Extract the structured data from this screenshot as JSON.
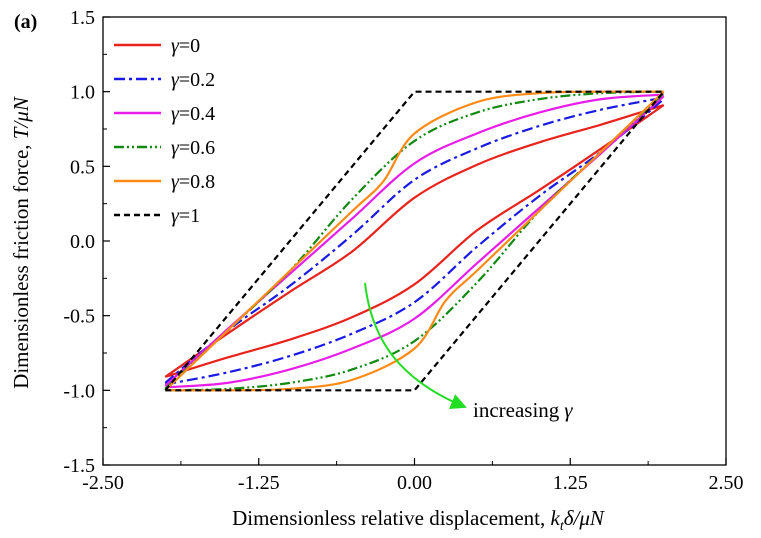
{
  "panel_label": "(a)",
  "annotation": {
    "text": "increasing",
    "symbol": "γ",
    "arrow_color": "#22dd22"
  },
  "chart_data": {
    "type": "line",
    "title": "",
    "xlabel_parts": [
      "Dimensionless relative displacement, ",
      "k",
      "t",
      "δ/μN"
    ],
    "ylabel_parts": [
      "Dimensionless friction force, ",
      "T/μN"
    ],
    "xlim": [
      -2.5,
      2.5
    ],
    "ylim": [
      -1.5,
      1.5
    ],
    "xticks": [
      -2.5,
      -1.25,
      0,
      1.25,
      2.5
    ],
    "xtick_labels": [
      "-2.50",
      "-1.25",
      "0.00",
      "1.25",
      "2.50"
    ],
    "yticks": [
      -1.5,
      -1.0,
      -0.5,
      0.0,
      0.5,
      1.0,
      1.5
    ],
    "ytick_labels": [
      "-1.5",
      "-1.0",
      "-0.5",
      "0.0",
      "0.5",
      "1.0",
      "1.5"
    ],
    "grid": false,
    "legend_position": "top-left",
    "series": [
      {
        "name": "γ=0",
        "symbol": "γ",
        "value_text": "=0",
        "gamma": 0,
        "color": "#e8231c",
        "dash": "solid",
        "upper": [
          [
            -2,
            -0.91
          ],
          [
            -1.5,
            -0.62
          ],
          [
            -1,
            -0.34
          ],
          [
            -0.5,
            -0.07
          ],
          [
            0,
            0.29
          ],
          [
            0.5,
            0.51
          ],
          [
            1,
            0.66
          ],
          [
            1.5,
            0.78
          ],
          [
            2,
            0.91
          ]
        ],
        "lower": [
          [
            -2,
            -0.91
          ],
          [
            -1.5,
            -0.78
          ],
          [
            -1,
            -0.66
          ],
          [
            -0.5,
            -0.51
          ],
          [
            0,
            -0.29
          ],
          [
            0.5,
            0.07
          ],
          [
            1,
            0.34
          ],
          [
            1.5,
            0.62
          ],
          [
            2,
            0.91
          ]
        ]
      },
      {
        "name": "γ=0.2",
        "symbol": "γ",
        "value_text": "=0.2",
        "gamma": 0.2,
        "color": "#1a1ae6",
        "dash": "dashdot",
        "upper": [
          [
            -2,
            -0.95
          ],
          [
            -1.5,
            -0.6
          ],
          [
            -1,
            -0.3
          ],
          [
            -0.5,
            0.04
          ],
          [
            0,
            0.41
          ],
          [
            0.5,
            0.62
          ],
          [
            1,
            0.77
          ],
          [
            1.5,
            0.88
          ],
          [
            2,
            0.96
          ]
        ],
        "lower": [
          [
            -2,
            -0.96
          ],
          [
            -1.5,
            -0.88
          ],
          [
            -1,
            -0.77
          ],
          [
            -0.5,
            -0.62
          ],
          [
            0,
            -0.41
          ],
          [
            0.5,
            -0.04
          ],
          [
            1,
            0.3
          ],
          [
            1.5,
            0.6
          ],
          [
            2,
            0.95
          ]
        ]
      },
      {
        "name": "γ=0.4",
        "symbol": "γ",
        "value_text": "=0.4",
        "gamma": 0.4,
        "color": "#e81ee8",
        "dash": "solid",
        "upper": [
          [
            -2,
            -0.97
          ],
          [
            -1.5,
            -0.59
          ],
          [
            -1,
            -0.22
          ],
          [
            -0.5,
            0.15
          ],
          [
            0,
            0.52
          ],
          [
            0.5,
            0.72
          ],
          [
            1,
            0.86
          ],
          [
            1.5,
            0.95
          ],
          [
            2,
            0.98
          ]
        ],
        "lower": [
          [
            -2,
            -0.98
          ],
          [
            -1.5,
            -0.95
          ],
          [
            -1,
            -0.86
          ],
          [
            -0.5,
            -0.72
          ],
          [
            0,
            -0.52
          ],
          [
            0.5,
            -0.15
          ],
          [
            1,
            0.22
          ],
          [
            1.5,
            0.59
          ],
          [
            2,
            0.97
          ]
        ]
      },
      {
        "name": "γ=0.6",
        "symbol": "γ",
        "value_text": "=0.6",
        "gamma": 0.6,
        "color": "#128a12",
        "dash": "dashdotdot",
        "upper": [
          [
            -2,
            -0.99
          ],
          [
            -1.5,
            -0.6
          ],
          [
            -1,
            -0.2
          ],
          [
            -0.5,
            0.28
          ],
          [
            0,
            0.67
          ],
          [
            0.5,
            0.86
          ],
          [
            1,
            0.95
          ],
          [
            1.5,
            0.99
          ],
          [
            2,
            1.0
          ]
        ],
        "lower": [
          [
            -2,
            -1.0
          ],
          [
            -1.5,
            -0.99
          ],
          [
            -1,
            -0.95
          ],
          [
            -0.5,
            -0.86
          ],
          [
            0,
            -0.67
          ],
          [
            0.5,
            -0.28
          ],
          [
            1,
            0.2
          ],
          [
            1.5,
            0.6
          ],
          [
            2,
            0.99
          ]
        ]
      },
      {
        "name": "γ=0.8",
        "symbol": "γ",
        "value_text": "=0.8",
        "gamma": 0.8,
        "color": "#ff8a14",
        "dash": "solid",
        "upper": [
          [
            -2,
            -1.0
          ],
          [
            -1.5,
            -0.6
          ],
          [
            -1,
            -0.2
          ],
          [
            -0.5,
            0.2
          ],
          [
            -0.25,
            0.4
          ],
          [
            0,
            0.72
          ],
          [
            0.5,
            0.93
          ],
          [
            1,
            0.99
          ],
          [
            1.5,
            1.0
          ],
          [
            2,
            1.0
          ]
        ],
        "lower": [
          [
            -2,
            -1.0
          ],
          [
            -1.5,
            -1.0
          ],
          [
            -1,
            -0.99
          ],
          [
            -0.5,
            -0.93
          ],
          [
            0,
            -0.72
          ],
          [
            0.25,
            -0.4
          ],
          [
            0.5,
            -0.2
          ],
          [
            1,
            0.2
          ],
          [
            1.5,
            0.6
          ],
          [
            2,
            1.0
          ]
        ]
      },
      {
        "name": "γ=1",
        "symbol": "γ",
        "value_text": "=1",
        "gamma": 1,
        "color": "#000000",
        "dash": "dashed",
        "upper": [
          [
            -2,
            -1.0
          ],
          [
            0,
            1.0
          ],
          [
            2,
            1.0
          ]
        ],
        "lower": [
          [
            -2,
            -1.0
          ],
          [
            0,
            -1.0
          ],
          [
            2,
            1.0
          ]
        ]
      }
    ]
  }
}
